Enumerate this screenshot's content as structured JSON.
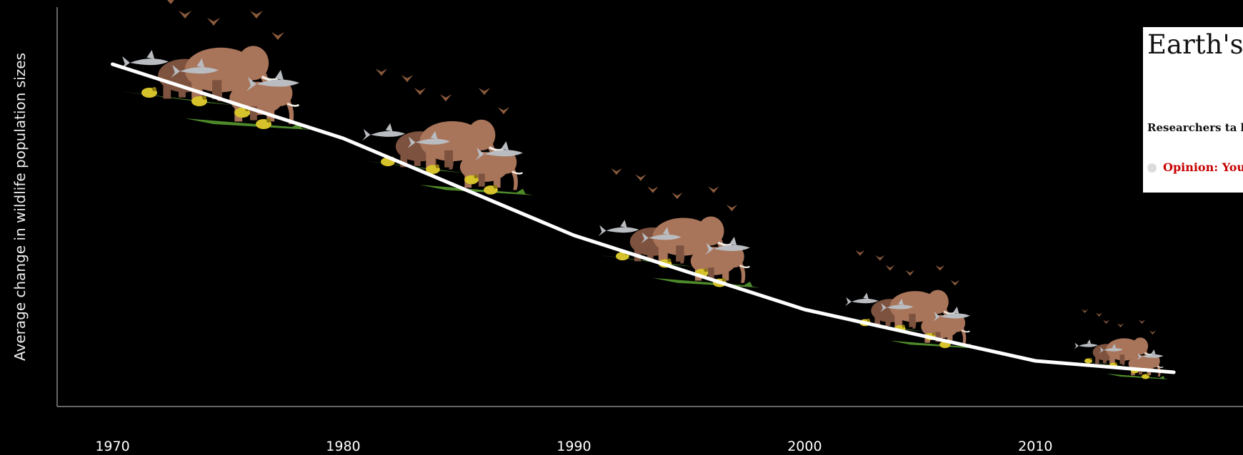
{
  "chart_data": {
    "type": "line",
    "title": "",
    "xlabel": "",
    "ylabel": "Average change in wildlife population sizes",
    "x": [
      1970,
      1980,
      1990,
      2000,
      2010,
      2016
    ],
    "series": [
      {
        "values": [
          1.0,
          0.87,
          0.7,
          0.57,
          0.48,
          0.46
        ]
      }
    ],
    "xticks": [
      "1970",
      "1980",
      "1990",
      "2000",
      "2010"
    ],
    "xlim": [
      1967.6,
      2019
    ],
    "ylim": [
      0.4,
      1.1
    ],
    "grid": false,
    "line_color": "#ffffff",
    "axis_color": "#888888",
    "illustrations": [
      {
        "x": 1975,
        "y": 0.94,
        "scale": 1.0,
        "icon": "wildlife-group-icon"
      },
      {
        "x": 1985,
        "y": 0.82,
        "scale": 0.9,
        "icon": "wildlife-group-icon"
      },
      {
        "x": 1995,
        "y": 0.655,
        "scale": 0.85,
        "icon": "wildlife-group-icon"
      },
      {
        "x": 2005,
        "y": 0.54,
        "scale": 0.7,
        "icon": "wildlife-group-icon"
      },
      {
        "x": 2014,
        "y": 0.475,
        "scale": 0.5,
        "icon": "wildlife-group-icon"
      }
    ],
    "colors": {
      "elephant": "#a8745a",
      "elephant_shadow": "#7d523e",
      "shark": "#b9bcc0",
      "crocodile": "#4f8a2a",
      "frog": "#d6c22a",
      "bird": "#8a5a3c"
    }
  },
  "card": {
    "title": "Earth's s under w",
    "standfirst": "Researchers ta billions of popu",
    "link": "Opinion: You sixth mass ex",
    "link_color": "#c70000"
  }
}
